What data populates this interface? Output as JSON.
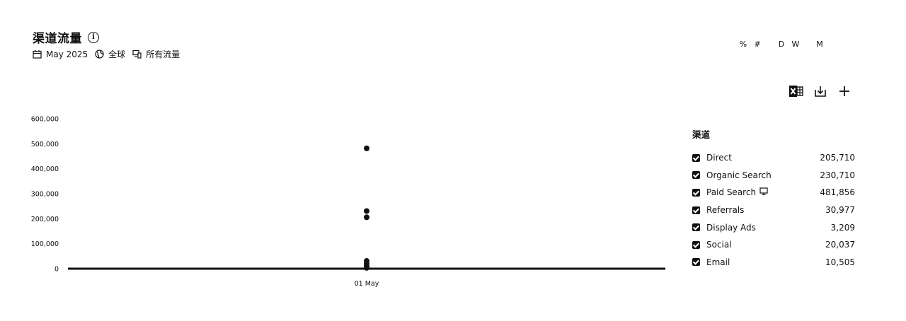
{
  "header": {
    "title": "渠道流量",
    "info_icon": "info-icon",
    "meta": [
      {
        "icon": "calendar-icon",
        "label": "May 2025"
      },
      {
        "icon": "globe-icon",
        "label": "全球"
      },
      {
        "icon": "devices-icon",
        "label": "所有流量"
      }
    ]
  },
  "toggles": {
    "percent": "%",
    "number": "#",
    "day": "D",
    "week": "W",
    "month": "M"
  },
  "tools": [
    "excel-export-icon",
    "download-icon",
    "add-icon"
  ],
  "legend": {
    "title": "渠道",
    "items": [
      {
        "name": "Direct",
        "value": "205,710",
        "checked": true
      },
      {
        "name": "Organic Search",
        "value": "230,710",
        "checked": true
      },
      {
        "name": "Paid Search",
        "value": "481,856",
        "checked": true,
        "badge_icon": "ad-icon"
      },
      {
        "name": "Referrals",
        "value": "30,977",
        "checked": true
      },
      {
        "name": "Display Ads",
        "value": "3,209",
        "checked": true
      },
      {
        "name": "Social",
        "value": "20,037",
        "checked": true
      },
      {
        "name": "Email",
        "value": "10,505",
        "checked": true
      }
    ]
  },
  "chart_data": {
    "type": "scatter",
    "x": [
      "01 May"
    ],
    "series": [
      {
        "name": "Direct",
        "values": [
          205710
        ]
      },
      {
        "name": "Organic Search",
        "values": [
          230710
        ]
      },
      {
        "name": "Paid Search",
        "values": [
          481856
        ]
      },
      {
        "name": "Referrals",
        "values": [
          30977
        ]
      },
      {
        "name": "Display Ads",
        "values": [
          3209
        ]
      },
      {
        "name": "Social",
        "values": [
          20037
        ]
      },
      {
        "name": "Email",
        "values": [
          10505
        ]
      }
    ],
    "ylim": [
      0,
      600000
    ],
    "yticks": [
      "0",
      "100,000",
      "200,000",
      "300,000",
      "400,000",
      "500,000",
      "600,000"
    ],
    "xlabel": "",
    "ylabel": "",
    "grid": false,
    "point_color": "#111111"
  }
}
